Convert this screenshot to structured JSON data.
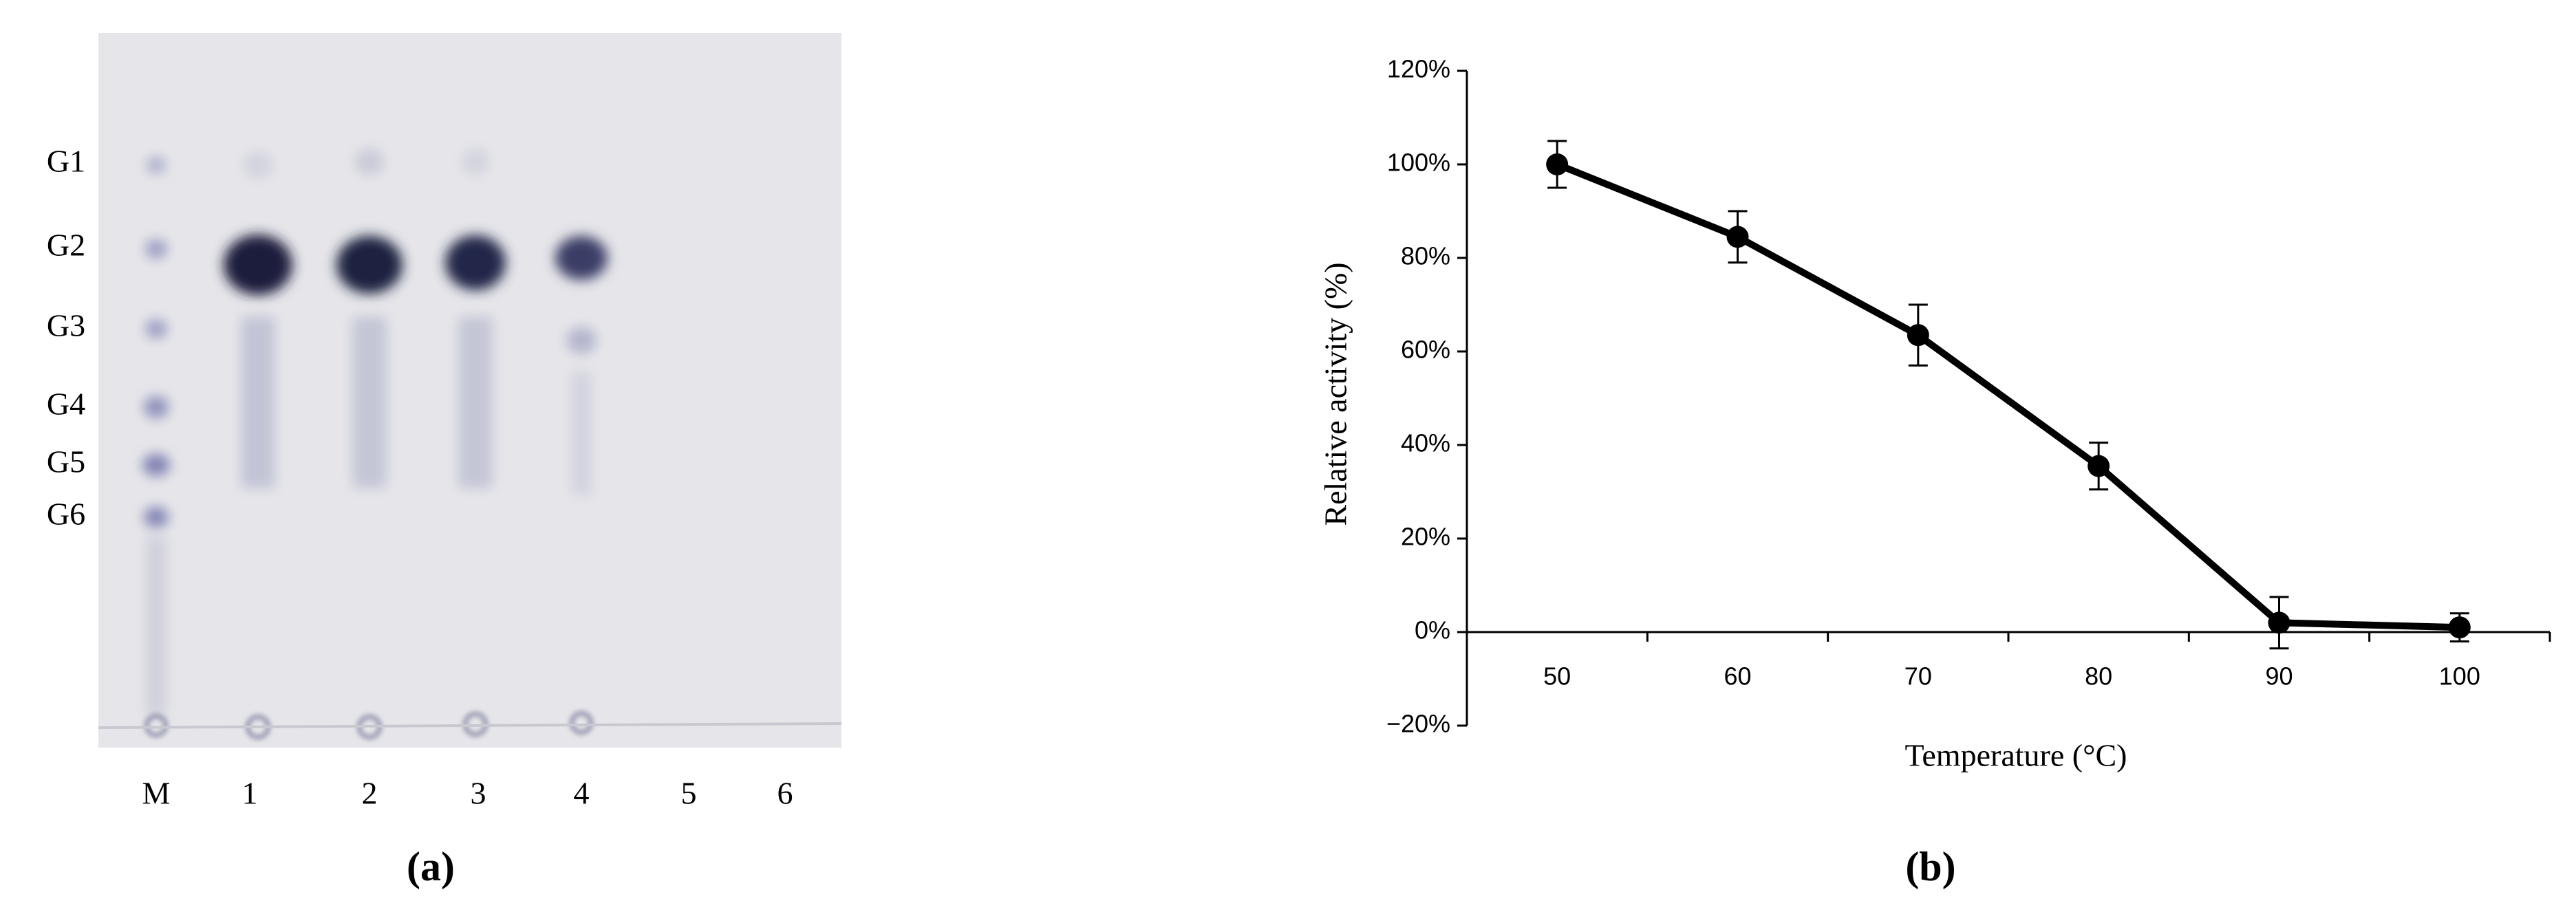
{
  "panel_a": {
    "row_labels": [
      "G1",
      "G2",
      "G3",
      "G4",
      "G5",
      "G6"
    ],
    "lane_labels": [
      "M",
      "1",
      "2",
      "3",
      "4",
      "5",
      "6"
    ],
    "caption": "(a)"
  },
  "chart_data": {
    "type": "line",
    "caption": "(b)",
    "x_label": "Temperature (°C)",
    "y_label": "Relative activity (%)",
    "categories": [
      "50",
      "60",
      "70",
      "80",
      "90",
      "100"
    ],
    "series": [
      {
        "color": "#000000",
        "values": [
          100,
          84.5,
          63.5,
          35.5,
          2,
          1
        ],
        "errors": [
          5,
          5.5,
          6.5,
          5,
          5.5,
          3
        ]
      }
    ],
    "ylim": [
      -20,
      120
    ],
    "yticks": [
      {
        "value": -20,
        "label": "−20%"
      },
      {
        "value": 0,
        "label": "0%"
      },
      {
        "value": 20,
        "label": "20%"
      },
      {
        "value": 40,
        "label": "40%"
      },
      {
        "value": 60,
        "label": "60%"
      },
      {
        "value": 80,
        "label": "80%"
      },
      {
        "value": 100,
        "label": "100%"
      },
      {
        "value": 120,
        "label": "120%"
      }
    ]
  }
}
